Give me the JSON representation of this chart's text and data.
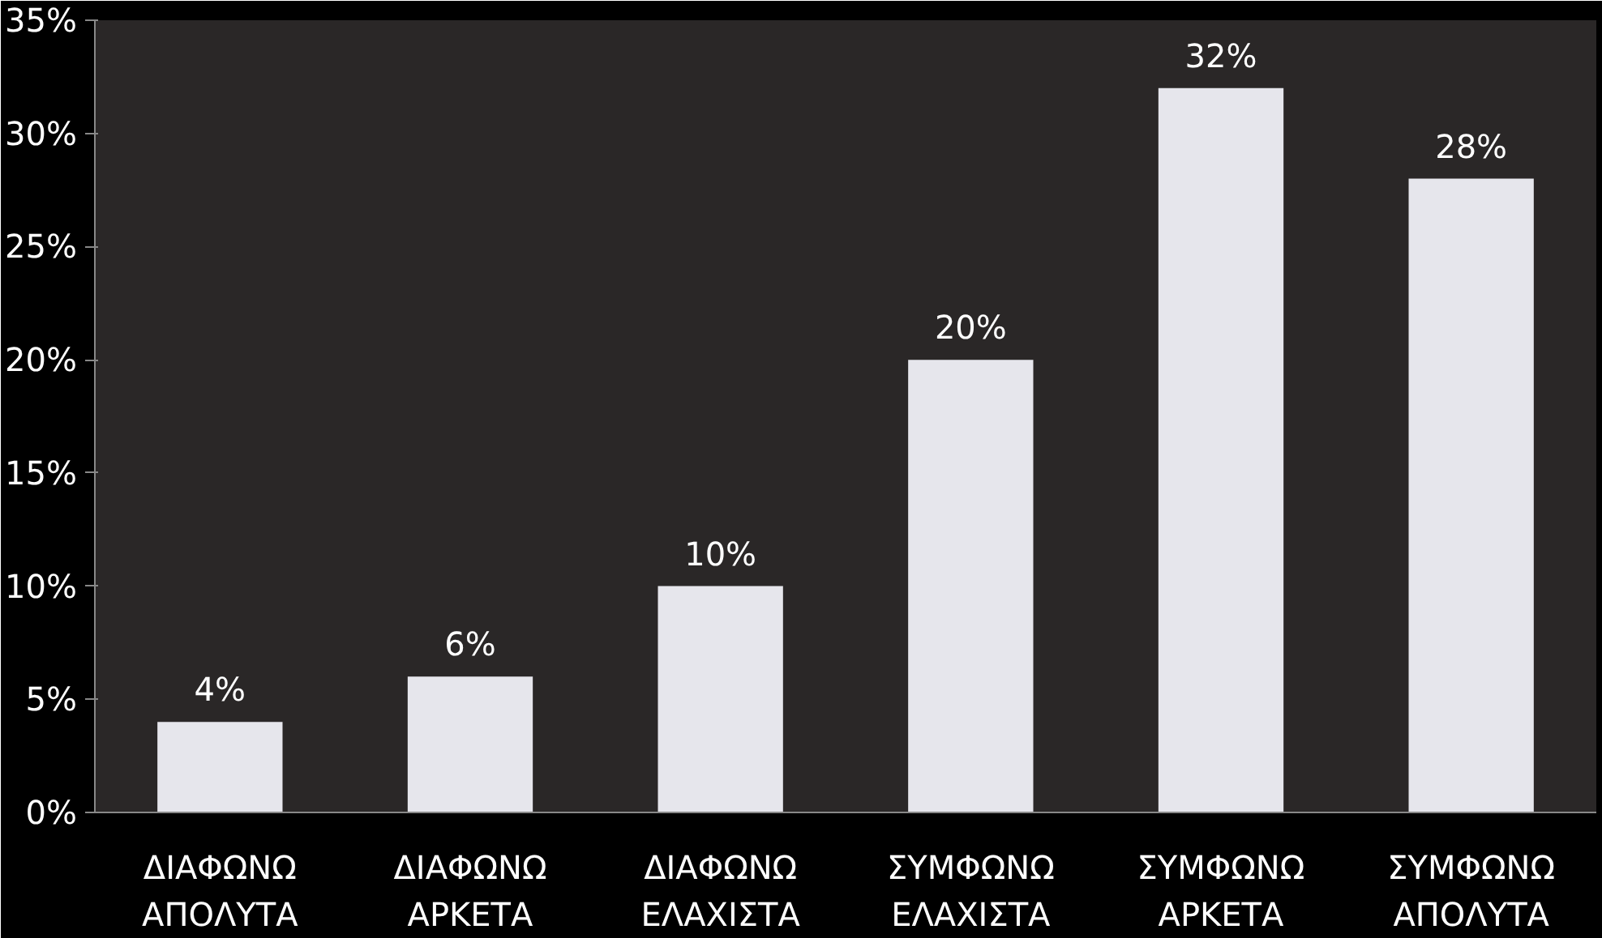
{
  "chart_data": {
    "type": "bar",
    "categories": [
      "ΔΙΑΦΩΝΩ ΑΠΟΛΥΤΑ",
      "ΔΙΑΦΩΝΩ ΑΡΚΕΤΑ",
      "ΔΙΑΦΩΝΩ ΕΛΑΧΙΣΤΑ",
      "ΣΥΜΦΩΝΩ ΕΛΑΧΙΣΤΑ",
      "ΣΥΜΦΩΝΩ ΑΡΚΕΤΑ",
      "ΣΥΜΦΩΝΩ ΑΠΟΛΥΤΑ"
    ],
    "values": [
      4,
      6,
      10,
      20,
      32,
      28
    ],
    "value_labels": [
      "4%",
      "6%",
      "10%",
      "20%",
      "32%",
      "28%"
    ],
    "color": "#e6e6ec",
    "ylim": [
      0,
      35
    ],
    "yticks": [
      {
        "value": 0,
        "label": "0%"
      },
      {
        "value": 5,
        "label": "5%"
      },
      {
        "value": 10,
        "label": "10%"
      },
      {
        "value": 15,
        "label": "15%"
      },
      {
        "value": 20,
        "label": "20%"
      },
      {
        "value": 25,
        "label": "25%"
      },
      {
        "value": 30,
        "label": "30%"
      },
      {
        "value": 35,
        "label": "35%"
      }
    ],
    "grid": false
  }
}
